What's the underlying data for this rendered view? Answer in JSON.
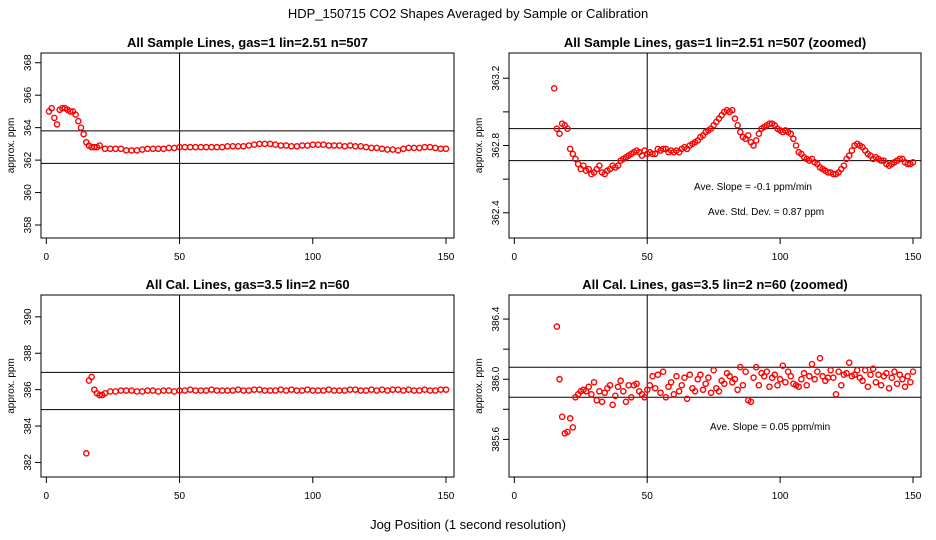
{
  "figure": {
    "title": "HDP_150715  CO2 Shapes Averaged by Sample or Calibration",
    "xlabel": "Jog Position (1 second resolution)"
  },
  "colors": {
    "points": "#ff0000",
    "lines": "#000000",
    "background": "#ffffff"
  },
  "chart_data": [
    {
      "type": "scatter",
      "title": "All Sample Lines, gas=1 lin=2.51 n=507",
      "xlabel": "",
      "ylabel": "approx. ppm",
      "xlim": [
        -2,
        153
      ],
      "ylim": [
        357.2,
        368.6
      ],
      "xticks": [
        0,
        50,
        100,
        150
      ],
      "yticks": [
        358,
        360,
        362,
        364,
        366,
        368
      ],
      "vlines": [
        50
      ],
      "hlines": [
        363.8,
        361.8
      ],
      "annotations": [],
      "series": [
        {
          "name": "sample",
          "x": [
            1,
            2,
            3,
            4,
            5,
            6,
            7,
            8,
            9,
            10,
            11,
            12,
            13,
            14,
            15,
            16,
            17,
            18,
            19,
            20,
            22,
            24,
            26,
            28,
            30,
            32,
            34,
            36,
            38,
            40,
            42,
            44,
            46,
            48,
            50,
            52,
            54,
            56,
            58,
            60,
            62,
            64,
            66,
            68,
            70,
            72,
            74,
            76,
            78,
            80,
            82,
            84,
            86,
            88,
            90,
            92,
            94,
            96,
            98,
            100,
            102,
            104,
            106,
            108,
            110,
            112,
            114,
            116,
            118,
            120,
            122,
            124,
            126,
            128,
            130,
            132,
            134,
            136,
            138,
            140,
            142,
            144,
            146,
            148,
            150
          ],
          "y": [
            365,
            365.2,
            364.6,
            364.2,
            365.1,
            365.2,
            365.2,
            365.1,
            365,
            365,
            364.8,
            364.4,
            364,
            363.6,
            363.1,
            362.9,
            362.8,
            362.8,
            362.8,
            362.9,
            362.7,
            362.7,
            362.7,
            362.7,
            362.6,
            362.6,
            362.6,
            362.65,
            362.7,
            362.7,
            362.7,
            362.7,
            362.75,
            362.75,
            362.8,
            362.8,
            362.8,
            362.8,
            362.8,
            362.8,
            362.8,
            362.8,
            362.8,
            362.85,
            362.85,
            362.85,
            362.85,
            362.9,
            362.95,
            363,
            363,
            363,
            362.95,
            362.9,
            362.9,
            362.85,
            362.85,
            362.9,
            362.9,
            362.95,
            362.95,
            362.95,
            362.9,
            362.9,
            362.9,
            362.85,
            362.9,
            362.85,
            362.85,
            362.8,
            362.75,
            362.75,
            362.7,
            362.65,
            362.65,
            362.6,
            362.7,
            362.75,
            362.75,
            362.75,
            362.8,
            362.8,
            362.75,
            362.7,
            362.7
          ]
        }
      ]
    },
    {
      "type": "scatter",
      "title": "All Sample Lines, gas=1 lin=2.51 n=507 (zoomed)",
      "xlabel": "",
      "ylabel": "approx. ppm",
      "xlim": [
        -2,
        153
      ],
      "ylim": [
        362.25,
        363.35
      ],
      "xticks": [
        0,
        50,
        100,
        150
      ],
      "yticks": [
        362.4,
        362.6,
        362.8,
        363.0,
        363.2
      ],
      "ytick_labels": [
        "362.4",
        "",
        "362.8",
        "",
        "363.2"
      ],
      "vlines": [
        50
      ],
      "hlines": [
        362.9,
        362.71
      ],
      "annotations": [
        "Ave. Slope =  -0.1  ppm/min",
        "Ave. Std. Dev. =  0.87  ppm"
      ],
      "series": [
        {
          "name": "sample zoomed",
          "x": [
            15,
            16,
            17,
            18,
            19,
            20,
            21,
            22,
            23,
            24,
            25,
            26,
            27,
            28,
            29,
            30,
            31,
            32,
            33,
            34,
            35,
            36,
            37,
            38,
            39,
            40,
            41,
            42,
            43,
            44,
            45,
            46,
            47,
            48,
            49,
            50,
            51,
            52,
            53,
            54,
            55,
            56,
            57,
            58,
            59,
            60,
            61,
            62,
            63,
            64,
            65,
            66,
            67,
            68,
            69,
            70,
            71,
            72,
            73,
            74,
            75,
            76,
            77,
            78,
            79,
            80,
            81,
            82,
            83,
            84,
            85,
            86,
            87,
            88,
            89,
            90,
            91,
            92,
            93,
            94,
            95,
            96,
            97,
            98,
            99,
            100,
            101,
            102,
            103,
            104,
            105,
            106,
            107,
            108,
            109,
            110,
            111,
            112,
            113,
            114,
            115,
            116,
            117,
            118,
            119,
            120,
            121,
            122,
            123,
            124,
            125,
            126,
            127,
            128,
            129,
            130,
            131,
            132,
            133,
            134,
            135,
            136,
            137,
            138,
            139,
            140,
            141,
            142,
            143,
            144,
            145,
            146,
            147,
            148,
            149,
            150
          ],
          "y": [
            363.14,
            362.9,
            362.87,
            362.93,
            362.92,
            362.9,
            362.78,
            362.75,
            362.72,
            362.69,
            362.66,
            362.68,
            362.65,
            362.66,
            362.63,
            362.64,
            362.66,
            362.68,
            362.64,
            362.63,
            362.65,
            362.66,
            362.68,
            362.67,
            362.68,
            362.71,
            362.72,
            362.73,
            362.74,
            362.75,
            362.76,
            362.77,
            362.76,
            362.74,
            362.77,
            362.75,
            362.76,
            362.75,
            362.75,
            362.78,
            362.77,
            362.78,
            362.78,
            362.76,
            362.77,
            362.76,
            362.77,
            362.76,
            362.78,
            362.79,
            362.78,
            362.8,
            362.81,
            362.82,
            362.83,
            362.85,
            362.86,
            362.88,
            362.89,
            362.9,
            362.92,
            362.94,
            362.96,
            362.98,
            363.0,
            363.01,
            363.0,
            363.01,
            362.96,
            362.92,
            362.88,
            362.85,
            362.84,
            362.86,
            362.82,
            362.8,
            362.83,
            362.87,
            362.9,
            362.91,
            362.92,
            362.93,
            362.93,
            362.92,
            362.9,
            362.89,
            362.88,
            362.89,
            362.88,
            362.87,
            362.84,
            362.8,
            362.76,
            362.75,
            362.73,
            362.72,
            362.71,
            362.72,
            362.7,
            362.69,
            362.67,
            362.66,
            362.65,
            362.64,
            362.64,
            362.63,
            362.63,
            362.64,
            362.66,
            362.68,
            362.72,
            362.74,
            362.77,
            362.8,
            362.81,
            362.8,
            362.79,
            362.77,
            362.75,
            362.74,
            362.72,
            362.73,
            362.72,
            362.71,
            362.71,
            362.69,
            362.68,
            362.69,
            362.7,
            362.71,
            362.72,
            362.72,
            362.7,
            362.69,
            362.69,
            362.7
          ]
        }
      ]
    },
    {
      "type": "scatter",
      "title": "All Cal. Lines, gas=3.5 lin=2 n=60",
      "xlabel": "",
      "ylabel": "approx. ppm",
      "xlim": [
        -2,
        153
      ],
      "ylim": [
        381.2,
        391.2
      ],
      "xticks": [
        0,
        50,
        100,
        150
      ],
      "yticks": [
        382,
        384,
        386,
        388,
        390
      ],
      "vlines": [
        50
      ],
      "hlines": [
        386.95,
        384.9
      ],
      "annotations": [],
      "series": [
        {
          "name": "cal",
          "x": [
            15,
            16,
            17,
            18,
            19,
            20,
            21,
            22,
            24,
            26,
            28,
            30,
            32,
            34,
            36,
            38,
            40,
            42,
            44,
            46,
            48,
            50,
            52,
            54,
            56,
            58,
            60,
            62,
            64,
            66,
            68,
            70,
            72,
            74,
            76,
            78,
            80,
            82,
            84,
            86,
            88,
            90,
            92,
            94,
            96,
            98,
            100,
            102,
            104,
            106,
            108,
            110,
            112,
            114,
            116,
            118,
            120,
            122,
            124,
            126,
            128,
            130,
            132,
            134,
            136,
            138,
            140,
            142,
            144,
            146,
            148,
            150
          ],
          "y": [
            382.5,
            386.5,
            386.7,
            386,
            385.8,
            385.7,
            385.7,
            385.8,
            385.9,
            385.9,
            385.95,
            385.95,
            385.95,
            385.9,
            385.9,
            385.95,
            385.95,
            385.9,
            385.95,
            385.95,
            385.9,
            385.95,
            385.95,
            386,
            385.95,
            385.95,
            385.95,
            386,
            385.95,
            385.95,
            385.95,
            385.95,
            386,
            385.95,
            385.95,
            386,
            386,
            385.95,
            385.95,
            385.95,
            386,
            385.95,
            386,
            385.95,
            385.95,
            386,
            385.95,
            385.95,
            385.95,
            386,
            385.95,
            385.95,
            385.95,
            386,
            386,
            385.95,
            385.95,
            386,
            385.95,
            386,
            385.95,
            386,
            386,
            385.95,
            386,
            385.95,
            385.95,
            386,
            385.95,
            385.95,
            386,
            386
          ]
        }
      ]
    },
    {
      "type": "scatter",
      "title": "All Cal. Lines, gas=3.5 lin=2 n=60 (zoomed)",
      "xlabel": "",
      "ylabel": "approx. ppm",
      "xlim": [
        -2,
        153
      ],
      "ylim": [
        385.35,
        386.56
      ],
      "xticks": [
        0,
        50,
        100,
        150
      ],
      "yticks": [
        385.6,
        385.8,
        386.0,
        386.2,
        386.4
      ],
      "ytick_labels": [
        "385.6",
        "",
        "386.0",
        "",
        "386.4"
      ],
      "vlines": [
        50
      ],
      "hlines": [
        386.08,
        385.88
      ],
      "annotations": [
        "Ave. Slope =  0.05  ppm/min"
      ],
      "series": [
        {
          "name": "cal zoomed",
          "x": [
            16,
            17,
            18,
            19,
            20,
            21,
            22,
            23,
            24,
            25,
            26,
            27,
            28,
            29,
            30,
            31,
            32,
            33,
            34,
            35,
            36,
            37,
            38,
            39,
            40,
            41,
            42,
            43,
            44,
            45,
            46,
            47,
            48,
            49,
            50,
            51,
            52,
            53,
            54,
            55,
            56,
            57,
            58,
            59,
            60,
            61,
            62,
            63,
            64,
            65,
            66,
            67,
            68,
            69,
            70,
            71,
            72,
            73,
            74,
            75,
            76,
            77,
            78,
            79,
            80,
            81,
            82,
            83,
            84,
            85,
            86,
            87,
            88,
            89,
            90,
            91,
            92,
            93,
            94,
            95,
            96,
            97,
            98,
            99,
            100,
            101,
            102,
            103,
            104,
            105,
            106,
            107,
            108,
            109,
            110,
            111,
            112,
            113,
            114,
            115,
            116,
            117,
            118,
            119,
            120,
            121,
            122,
            123,
            124,
            125,
            126,
            127,
            128,
            129,
            130,
            131,
            132,
            133,
            134,
            135,
            136,
            137,
            138,
            139,
            140,
            141,
            142,
            143,
            144,
            145,
            146,
            147,
            148,
            149,
            150
          ],
          "y": [
            386.35,
            386.0,
            385.75,
            385.64,
            385.65,
            385.74,
            385.68,
            385.88,
            385.9,
            385.92,
            385.93,
            385.92,
            385.95,
            385.9,
            385.98,
            385.86,
            385.92,
            385.85,
            385.91,
            385.94,
            385.96,
            385.83,
            385.89,
            385.95,
            385.99,
            385.92,
            385.85,
            385.96,
            385.88,
            385.96,
            385.97,
            385.92,
            385.9,
            385.88,
            385.93,
            385.96,
            386.02,
            385.94,
            386.03,
            385.91,
            386.05,
            385.88,
            385.95,
            385.98,
            385.9,
            386.02,
            385.92,
            385.96,
            386.01,
            385.87,
            386.03,
            385.94,
            385.92,
            386.0,
            386.03,
            385.93,
            385.97,
            386.01,
            385.91,
            386.06,
            385.94,
            385.92,
            385.99,
            385.97,
            386.04,
            386.02,
            385.98,
            386.0,
            385.93,
            386.08,
            385.96,
            386.05,
            385.86,
            385.85,
            386.01,
            386.08,
            385.96,
            386.04,
            386.02,
            386.05,
            385.95,
            386.01,
            386.03,
            385.96,
            386.0,
            386.09,
            385.98,
            386.05,
            386.02,
            385.97,
            385.96,
            385.95,
            386.0,
            386.04,
            385.96,
            386.02,
            386.1,
            386.0,
            386.05,
            386.14,
            386.02,
            385.99,
            386.01,
            386.06,
            386.01,
            385.9,
            386.05,
            385.96,
            386.03,
            386.04,
            386.11,
            386.02,
            386.03,
            386.06,
            386.01,
            385.99,
            386.06,
            385.95,
            386.03,
            386.07,
            385.98,
            386.03,
            385.96,
            386.02,
            386.04,
            385.94,
            386.01,
            386.05,
            385.97,
            386.03,
            386.0,
            385.95,
            386.02,
            385.98,
            386.05
          ]
        }
      ]
    }
  ]
}
